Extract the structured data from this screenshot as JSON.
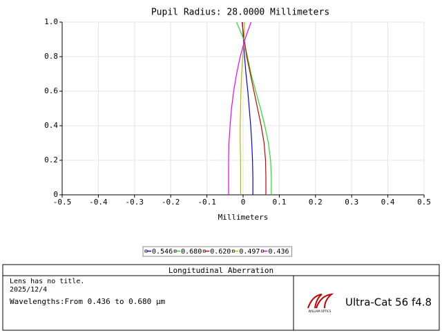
{
  "chart_data": {
    "type": "line",
    "title": "Pupil Radius: 28.0000 Millimeters",
    "x_label": "Millimeters",
    "pupil": [
      0,
      0.1,
      0.2,
      0.3,
      0.4,
      0.5,
      0.6,
      0.7,
      0.8,
      0.9,
      1
    ],
    "series": [
      {
        "name": "0.546",
        "color": "#0000ff",
        "values": [
          0.027,
          0.027,
          0.026,
          0.024,
          0.021,
          0.017,
          0.013,
          0.008,
          0.004,
          0.001,
          -0.002
        ]
      },
      {
        "name": "0.680",
        "color": "#22dd22",
        "values": [
          0.078,
          0.078,
          0.076,
          0.07,
          0.06,
          0.048,
          0.035,
          0.022,
          0.012,
          0.002,
          -0.018
        ]
      },
      {
        "name": "0.620",
        "color": "#cc0000",
        "values": [
          0.063,
          0.063,
          0.062,
          0.058,
          0.05,
          0.04,
          0.03,
          0.02,
          0.01,
          0.003,
          -0.003
        ]
      },
      {
        "name": "0.497",
        "color": "#b8b800",
        "values": [
          -0.007,
          -0.007,
          -0.007,
          -0.008,
          -0.008,
          -0.007,
          -0.006,
          -0.004,
          -0.001,
          0.003,
          0.004
        ]
      },
      {
        "name": "0.436",
        "color": "#ee00ee",
        "values": [
          -0.04,
          -0.04,
          -0.04,
          -0.039,
          -0.036,
          -0.032,
          -0.026,
          -0.018,
          -0.008,
          0.005,
          0.022
        ]
      }
    ],
    "xlim": [
      -0.5,
      0.5
    ],
    "xticks": [
      -0.5,
      -0.4,
      -0.3,
      -0.2,
      -0.1,
      0,
      0.1,
      0.2,
      0.3,
      0.4,
      0.5
    ],
    "ylim": [
      0,
      1
    ],
    "yticks": [
      0,
      0.2,
      0.4,
      0.6,
      0.8,
      {
        "value": 1,
        "label": "1.0"
      }
    ],
    "grid": true
  },
  "footer": {
    "title": "Longitudinal Aberration",
    "lines": [
      "Lens has no title.",
      "2025/12/4",
      "Wavelengths:From 0.436 to 0.680 µm"
    ],
    "logo": "Ultra-Cat 56 f4.8",
    "logo_brand": "WILLIAM OPTICS"
  }
}
